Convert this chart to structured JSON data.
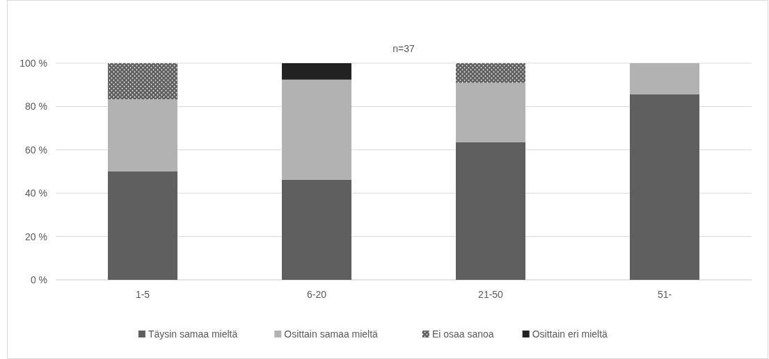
{
  "chart_data": {
    "type": "bar",
    "stacked": true,
    "title": "n=37",
    "categories": [
      "1-5",
      "6-20",
      "21-50",
      "51-"
    ],
    "series": [
      {
        "name": "Täysin samaa mieltä",
        "color": "#5f5f5f",
        "values": [
          50,
          46.2,
          63.6,
          85.7
        ]
      },
      {
        "name": "Osittain samaa mieltä",
        "color": "#b2b2b2",
        "values": [
          33.3,
          46.2,
          27.3,
          14.3
        ]
      },
      {
        "name": "Ei osaa sanoa",
        "color": "#5f5f5f",
        "values": [
          16.7,
          0,
          9.1,
          0
        ]
      },
      {
        "name": "Osittain eri mieltä",
        "color": "#222222",
        "values": [
          0,
          7.6,
          0,
          0
        ]
      }
    ],
    "ylim": [
      0,
      100
    ],
    "yticks": [
      {
        "value": 0,
        "label": "0 %"
      },
      {
        "value": 20,
        "label": "20 %"
      },
      {
        "value": 40,
        "label": "40 %"
      },
      {
        "value": 60,
        "label": "60 %"
      },
      {
        "value": 80,
        "label": "80 %"
      },
      {
        "value": 100,
        "label": "100 %"
      }
    ],
    "grid": "y",
    "legend": "bottom"
  }
}
